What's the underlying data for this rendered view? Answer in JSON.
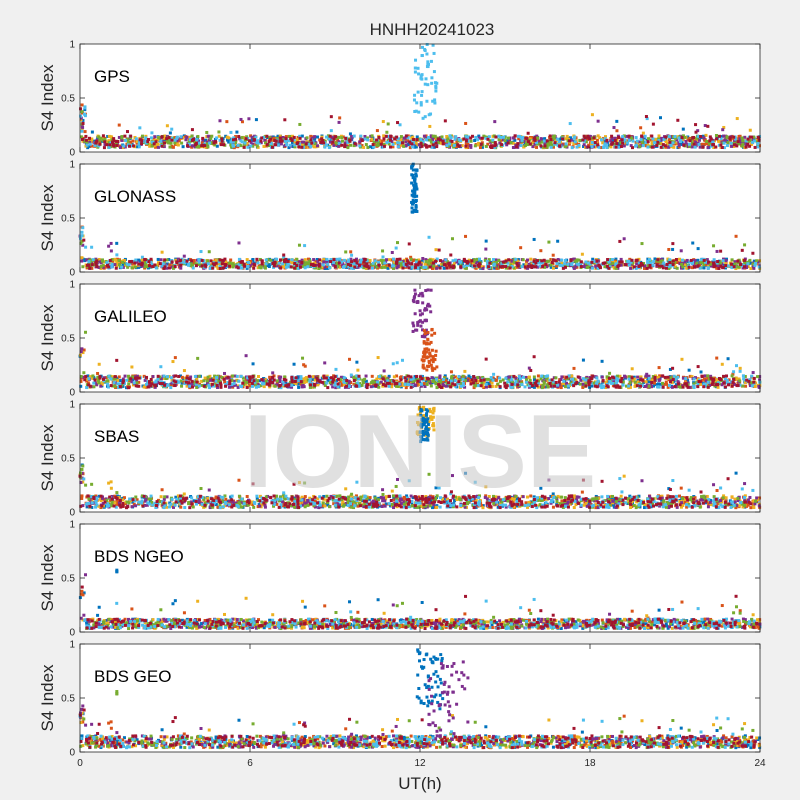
{
  "watermark": "IONISE",
  "colors": [
    "#0072bd",
    "#d95319",
    "#edb120",
    "#7e2f8e",
    "#77ac30",
    "#4dbeee",
    "#a2142f"
  ],
  "chart_data": {
    "type": "scatter",
    "title": "HNHH20241023",
    "xlabel": "UT(h)",
    "ylabel": "S4 Index",
    "xlim": [
      0,
      24
    ],
    "ylim": [
      0,
      1
    ],
    "xticks": [
      0,
      6,
      12,
      18,
      24
    ],
    "xtick_labels": [
      "0",
      "6",
      "12",
      "18",
      "24"
    ],
    "yticks": [
      0,
      0.5,
      1
    ],
    "ytick_labels": [
      "0",
      "0.5",
      "1"
    ],
    "panels": [
      {
        "name": "GPS",
        "baseline": 0.1,
        "spikes": [
          {
            "x": [
              11.8,
              12.6
            ],
            "y": [
              0.3,
              1.0
            ],
            "color": "#4dbeee"
          }
        ]
      },
      {
        "name": "GLONASS",
        "baseline": 0.08,
        "spikes": [
          {
            "x": [
              11.7,
              11.9
            ],
            "y": [
              0.55,
              1.0
            ],
            "color": "#0072bd"
          }
        ]
      },
      {
        "name": "GALILEO",
        "baseline": 0.1,
        "spikes": [
          {
            "x": [
              11.7,
              12.4
            ],
            "y": [
              0.5,
              0.95
            ],
            "color": "#7e2f8e"
          },
          {
            "x": [
              12.1,
              12.6
            ],
            "y": [
              0.2,
              0.6
            ],
            "color": "#d95319"
          }
        ]
      },
      {
        "name": "SBAS",
        "baseline": 0.1,
        "spikes": [
          {
            "x": [
              11.9,
              12.5
            ],
            "y": [
              0.7,
              0.97
            ],
            "color": "#edb120"
          },
          {
            "x": [
              12.0,
              12.3
            ],
            "y": [
              0.65,
              0.95
            ],
            "color": "#0072bd"
          }
        ]
      },
      {
        "name": "BDS NGEO",
        "baseline": 0.08,
        "spikes": [
          {
            "x": [
              1.3,
              1.3
            ],
            "y": [
              0.55,
              0.58
            ],
            "color": "#0072bd"
          }
        ]
      },
      {
        "name": "BDS GEO",
        "baseline": 0.1,
        "spikes": [
          {
            "x": [
              11.9,
              12.8
            ],
            "y": [
              0.4,
              0.95
            ],
            "color": "#0072bd"
          },
          {
            "x": [
              12.3,
              13.8
            ],
            "y": [
              0.1,
              0.85
            ],
            "color": "#7e2f8e"
          },
          {
            "x": [
              1.3,
              1.3
            ],
            "y": [
              0.53,
              0.56
            ],
            "color": "#77ac30"
          }
        ]
      }
    ]
  }
}
